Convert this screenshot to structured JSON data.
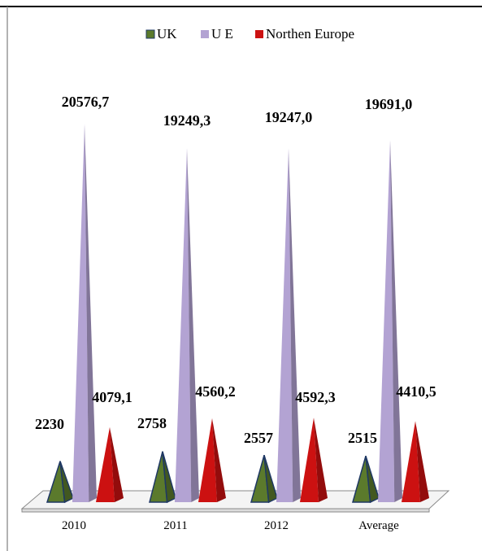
{
  "chart_data": {
    "type": "bar",
    "style": "3d-pyramid",
    "categories": [
      "2010",
      "2011",
      "2012",
      "Average"
    ],
    "series": [
      {
        "name": "UK",
        "color": "#5b7a2c",
        "values": [
          2230,
          2758,
          2557,
          2515
        ],
        "labels": [
          "2230",
          "2758",
          "2557",
          "2515"
        ]
      },
      {
        "name": "U E",
        "color": "#b3a3d3",
        "values": [
          20576.7,
          19249.3,
          19247.0,
          19691.0
        ],
        "labels": [
          "20576,7",
          "19249,3",
          "19247,0",
          "19691,0"
        ]
      },
      {
        "name": "Northen Europe",
        "color": "#cc1111",
        "values": [
          4079.1,
          4560.2,
          4592.3,
          4410.5
        ],
        "labels": [
          "4079,1",
          "4560,2",
          "4592,3",
          "4410,5"
        ]
      }
    ],
    "legend_position": "top",
    "grid": false,
    "ylim": [
      0,
      22000
    ]
  }
}
